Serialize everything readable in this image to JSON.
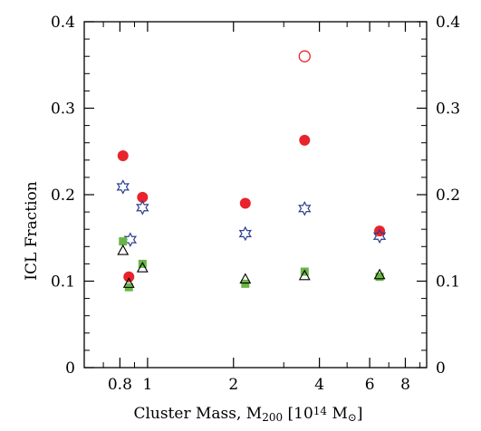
{
  "chart_data": {
    "type": "scatter",
    "title": "",
    "xlabel": "Cluster Mass, M",
    "xlabel_sub": "200",
    "xlabel_units_pre": " [10",
    "xlabel_units_sup": "14",
    "xlabel_units_post": " M",
    "xlabel_units_sub": "⊙",
    "xlabel_units_end": "]",
    "ylabel": "ICL Fraction",
    "x_scale": "log",
    "xlim": [
      0.6,
      9.5
    ],
    "ylim": [
      0,
      0.4
    ],
    "x_ticks": [
      {
        "value": 0.8,
        "label": "0.8"
      },
      {
        "value": 1,
        "label": "1"
      },
      {
        "value": 2,
        "label": "2"
      },
      {
        "value": 4,
        "label": "4"
      },
      {
        "value": 6,
        "label": "6"
      },
      {
        "value": 8,
        "label": "8"
      }
    ],
    "x_minor_ticks": [
      0.6,
      0.7,
      0.9,
      3,
      5,
      7,
      9
    ],
    "y_ticks": [
      {
        "value": 0,
        "label": "0"
      },
      {
        "value": 0.1,
        "label": "0.1"
      },
      {
        "value": 0.2,
        "label": "0.2"
      },
      {
        "value": 0.3,
        "label": "0.3"
      },
      {
        "value": 0.4,
        "label": "0.4"
      }
    ],
    "y_minor_step": 0.02,
    "right_axis_labels": true,
    "grid": false,
    "series": [
      {
        "marker": "filled-circle",
        "color": "#e8232b",
        "points": [
          [
            0.82,
            0.245
          ],
          [
            0.86,
            0.105
          ],
          [
            0.96,
            0.197
          ],
          [
            2.2,
            0.19
          ],
          [
            3.55,
            0.263
          ],
          [
            6.5,
            0.158
          ]
        ]
      },
      {
        "marker": "open-circle",
        "color": "#e8232b",
        "points": [
          [
            3.55,
            0.36
          ]
        ]
      },
      {
        "marker": "open-star",
        "color": "#2b3e8f",
        "points": [
          [
            0.82,
            0.209
          ],
          [
            0.87,
            0.148
          ],
          [
            0.96,
            0.185
          ],
          [
            2.2,
            0.155
          ],
          [
            3.55,
            0.184
          ],
          [
            6.5,
            0.152
          ]
        ]
      },
      {
        "marker": "filled-square",
        "color": "#6ab547",
        "points": [
          [
            0.82,
            0.146
          ],
          [
            0.86,
            0.093
          ],
          [
            0.96,
            0.12
          ],
          [
            2.2,
            0.097
          ],
          [
            3.55,
            0.111
          ],
          [
            6.5,
            0.105
          ]
        ]
      },
      {
        "marker": "open-triangle",
        "color": "#000000",
        "points": [
          [
            0.82,
            0.135
          ],
          [
            0.86,
            0.097
          ],
          [
            0.96,
            0.115
          ],
          [
            2.2,
            0.102
          ],
          [
            3.55,
            0.106
          ],
          [
            6.5,
            0.107
          ]
        ]
      }
    ]
  }
}
